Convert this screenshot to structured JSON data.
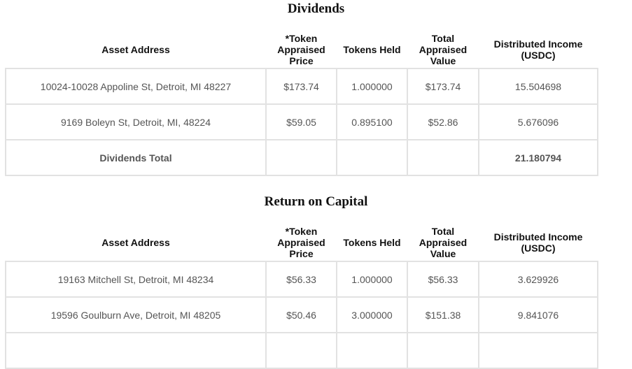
{
  "dividends": {
    "title": "Dividends",
    "headers": {
      "address": "Asset Address",
      "price": "*Token Appraised Price",
      "held": "Tokens Held",
      "value": "Total Appraised Value",
      "income": "Distributed Income (USDC)"
    },
    "rows": [
      {
        "address": "10024-10028 Appoline St, Detroit, MI 48227",
        "price": "$173.74",
        "held": "1.000000",
        "value": "$173.74",
        "income": "15.504698"
      },
      {
        "address": "9169 Boleyn St, Detroit, MI, 48224",
        "price": "$59.05",
        "held": "0.895100",
        "value": "$52.86",
        "income": "5.676096"
      }
    ],
    "total": {
      "label": "Dividends Total",
      "income": "21.180794"
    }
  },
  "return_on_capital": {
    "title": "Return on Capital",
    "headers": {
      "address": "Asset Address",
      "price": "*Token Appraised Price",
      "held": "Tokens Held",
      "value": "Total Appraised Value",
      "income": "Distributed Income (USDC)"
    },
    "rows": [
      {
        "address": "19163 Mitchell St, Detroit, MI 48234",
        "price": "$56.33",
        "held": "1.000000",
        "value": "$56.33",
        "income": "3.629926"
      },
      {
        "address": "19596 Goulburn Ave, Detroit, MI 48205",
        "price": "$50.46",
        "held": "3.000000",
        "value": "$151.38",
        "income": "9.841076"
      }
    ]
  }
}
